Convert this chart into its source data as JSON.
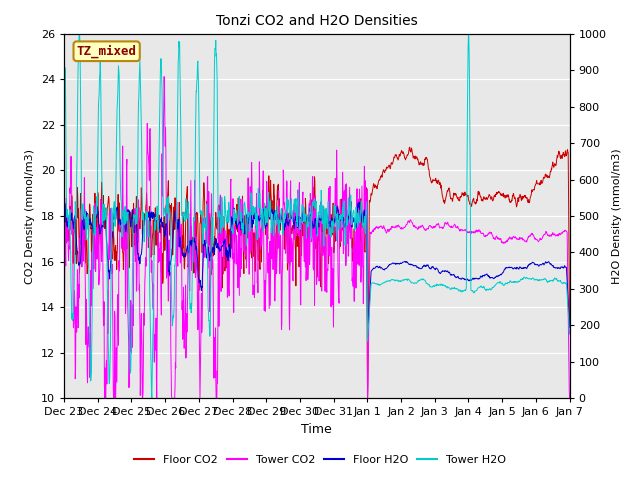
{
  "title": "Tonzi CO2 and H2O Densities",
  "xlabel": "Time",
  "ylabel_left": "CO2 Density (mmol/m3)",
  "ylabel_right": "H2O Density (mmol/m3)",
  "ylim_left": [
    10,
    26
  ],
  "ylim_right": [
    0,
    1000
  ],
  "yticks_left": [
    10,
    12,
    14,
    16,
    18,
    20,
    22,
    24,
    26
  ],
  "yticks_right": [
    0,
    100,
    200,
    300,
    400,
    500,
    600,
    700,
    800,
    900,
    1000
  ],
  "annotation_text": "TZ_mixed",
  "annotation_color": "#8b0000",
  "annotation_bg": "#ffffc0",
  "annotation_border": "#b8860b",
  "bg_color": "#e8e8e8",
  "colors": {
    "floor_co2": "#cc0000",
    "tower_co2": "#ff00ff",
    "floor_h2o": "#0000cc",
    "tower_h2o": "#00cccc"
  },
  "legend": [
    "Floor CO2",
    "Tower CO2",
    "Floor H2O",
    "Tower H2O"
  ],
  "tick_labels": [
    "Dec 23",
    "Dec 24",
    "Dec 25",
    "Dec 26",
    "Dec 27",
    "Dec 28",
    "Dec 29",
    "Dec 30",
    "Dec 31",
    "Jan 1",
    "Jan 2",
    "Jan 3",
    "Jan 4",
    "Jan 5",
    "Jan 6",
    "Jan 7"
  ],
  "n_points": 1440,
  "seed": 7
}
